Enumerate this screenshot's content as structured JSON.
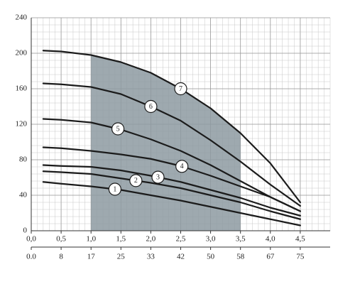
{
  "chart_data": {
    "type": "line",
    "x": [
      0.2,
      0.5,
      1.0,
      1.5,
      2.0,
      2.5,
      3.0,
      3.5,
      4.0,
      4.5
    ],
    "series": [
      {
        "name": "1",
        "color": "#1b1b1b",
        "values": [
          55,
          53,
          50,
          46,
          40,
          34,
          27,
          20,
          13,
          6
        ]
      },
      {
        "name": "2",
        "color": "#1b1b1b",
        "values": [
          67,
          66,
          64,
          59,
          54,
          48,
          40,
          32,
          22,
          13
        ]
      },
      {
        "name": "3",
        "color": "#1b1b1b",
        "values": [
          74,
          73,
          72,
          68,
          62,
          55,
          46,
          37,
          26,
          17
        ]
      },
      {
        "name": "4",
        "color": "#1b1b1b",
        "values": [
          94,
          93,
          90,
          86,
          81,
          73,
          62,
          50,
          38,
          22
        ]
      },
      {
        "name": "5",
        "color": "#1b1b1b",
        "values": [
          126,
          125,
          122,
          114,
          103,
          90,
          74,
          56,
          38,
          22
        ]
      },
      {
        "name": "6",
        "color": "#1b1b1b",
        "values": [
          166,
          165,
          162,
          154,
          140,
          124,
          102,
          78,
          52,
          28
        ]
      },
      {
        "name": "7",
        "color": "#1b1b1b",
        "values": [
          203,
          202,
          198,
          190,
          178,
          160,
          138,
          110,
          76,
          32
        ]
      }
    ],
    "operating_range": [
      1.0,
      3.5
    ],
    "operating_range_color": "#8d9aa1",
    "xlim": [
      0,
      5
    ],
    "xticks": [
      {
        "value": 0,
        "label": "0,0"
      },
      {
        "value": 0.5,
        "label": "0,5"
      },
      {
        "value": 1,
        "label": "1,0"
      },
      {
        "value": 1.5,
        "label": "1,5"
      },
      {
        "value": 2,
        "label": "2,0"
      },
      {
        "value": 2.5,
        "label": "2,5"
      },
      {
        "value": 3,
        "label": "3,0"
      },
      {
        "value": 3.5,
        "label": "3,5"
      },
      {
        "value": 4,
        "label": "4,0"
      },
      {
        "value": 4.5,
        "label": "4,5"
      }
    ],
    "x2lim": [
      0,
      83.33
    ],
    "x2ticks": [
      {
        "value": 0,
        "label": "0.0"
      },
      {
        "value": 8.33,
        "label": "8"
      },
      {
        "value": 16.67,
        "label": "17"
      },
      {
        "value": 25,
        "label": "25"
      },
      {
        "value": 33.33,
        "label": "33"
      },
      {
        "value": 41.67,
        "label": "42"
      },
      {
        "value": 50,
        "label": "50"
      },
      {
        "value": 58.33,
        "label": "58"
      },
      {
        "value": 66.67,
        "label": "67"
      },
      {
        "value": 75,
        "label": "75"
      }
    ],
    "ylim": [
      0,
      240
    ],
    "yticks": [
      0,
      40,
      80,
      120,
      160,
      200,
      240
    ],
    "grid": true
  }
}
